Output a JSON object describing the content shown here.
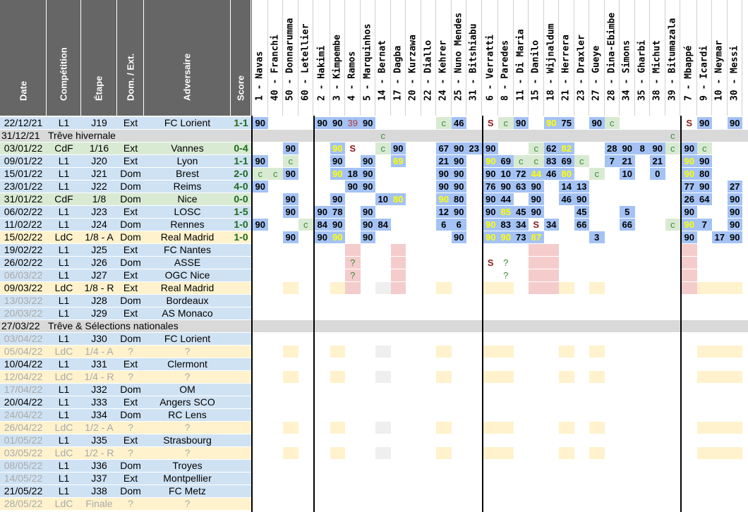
{
  "headers": [
    "Date",
    "Compétition",
    "Étape",
    "Dom. / Ext.",
    "Adversaire",
    "Score"
  ],
  "players": [
    "1 - Navas",
    "40 - Franchi",
    "50 - Donnarumma",
    "60 - Letellier",
    "2 - Hakimi",
    "3 - Kimpembe",
    "4 - Ramos",
    "5 - Marquinhos",
    "14 - Bernat",
    "17 - Dagba",
    "20 - Kurzawa",
    "22 - Diallo",
    "24 - Kehrer",
    "25 - Nuno Mendes",
    "31 - Bitshiabu",
    "6 - Verratti",
    "8 - Paredes",
    "11 - Di Maria",
    "15 - Danilo",
    "18 - Wijnaldum",
    "21 - Herrera",
    "23 - Draxler",
    "27 - Gueye",
    "28 - Dina-Ebimbe",
    "34 - Simons",
    "35 - Gharbi",
    "38 - Michut",
    "39 - Bitumazala",
    "7 - Mbappé",
    "9 - Icardi",
    "10 - Neymar",
    "30 - Messi"
  ],
  "colors": {
    "header": "#666666",
    "blue": "#a4c2f4",
    "lblue": "#cfe2f3",
    "green": "#d9ead3",
    "yellow": "#fff2cc",
    "red": "#f4cccc",
    "grey": "#efefef",
    "neutral": "#d9d9d9"
  },
  "rows": [
    {
      "date": "22/12/21",
      "comp": "L1",
      "stage": "J19",
      "venue": "Ext",
      "opp": "FC Lorient",
      "score": "1-1",
      "info": "lblue",
      "status": "played",
      "players": {
        "0": "90",
        "4": "90",
        "5": "90",
        "6": "39",
        "7": "90",
        "12": "c",
        "13": "46",
        "15": "S",
        "16": "c",
        "17": "90",
        "19": "90",
        "20": "75",
        "22": "90",
        "23": "c",
        "28": "S",
        "29": "90",
        "31": "90"
      }
    },
    {
      "date": "31/12/21",
      "span": "Trêve hivernale",
      "info": "neutral",
      "status": "break",
      "players": {
        "8": "c",
        "27": "c"
      }
    },
    {
      "date": "03/01/22",
      "comp": "CdF",
      "stage": "1/16",
      "venue": "Ext",
      "opp": "Vannes",
      "score": "0-4",
      "info": "green",
      "status": "played",
      "players": {
        "2": "90",
        "5": "90",
        "6": "S",
        "8": "c",
        "9": "90",
        "12": "67",
        "13": "90",
        "14": "23",
        "15": "90",
        "18": "c",
        "19": "62",
        "20": "82",
        "23": "28",
        "24": "90",
        "25": "8",
        "26": "90",
        "27": "c",
        "28": "90",
        "29": "c"
      }
    },
    {
      "date": "09/01/22",
      "comp": "L1",
      "stage": "J20",
      "venue": "Ext",
      "opp": "Lyon",
      "score": "1-1",
      "info": "lblue",
      "status": "played",
      "players": {
        "0": "90",
        "2": "c",
        "5": "90",
        "7": "90",
        "9": "69",
        "12": "21",
        "13": "90",
        "15": "90",
        "16": "69",
        "17": "c",
        "18": "c",
        "19": "83",
        "20": "69",
        "21": "c",
        "23": "7",
        "24": "21",
        "26": "21",
        "28": "90",
        "29": "90"
      }
    },
    {
      "date": "15/01/22",
      "comp": "L1",
      "stage": "J21",
      "venue": "Dom",
      "opp": "Brest",
      "score": "2-0",
      "info": "lblue",
      "status": "played",
      "players": {
        "0": "c",
        "1": "c",
        "2": "90",
        "5": "90",
        "6": "18",
        "7": "90",
        "12": "90",
        "13": "90",
        "15": "90",
        "16": "10",
        "17": "72",
        "18": "44",
        "19": "46",
        "20": "80",
        "22": "c",
        "24": "10",
        "26": "0",
        "28": "90",
        "29": "80"
      }
    },
    {
      "date": "23/01/22",
      "comp": "L1",
      "stage": "J22",
      "venue": "Dom",
      "opp": "Reims",
      "score": "4-0",
      "info": "lblue",
      "status": "played",
      "players": {
        "0": "90",
        "6": "90",
        "7": "90",
        "12": "90",
        "13": "90",
        "15": "76",
        "16": "90",
        "17": "63",
        "18": "90",
        "20": "14",
        "21": "13",
        "28": "77",
        "29": "90",
        "31": "27"
      }
    },
    {
      "date": "31/01/22",
      "comp": "CdF",
      "stage": "1/8",
      "venue": "Dom",
      "opp": "Nice",
      "score": "0-0",
      "info": "green",
      "status": "played",
      "players": {
        "2": "90",
        "5": "90",
        "8": "10",
        "9": "80",
        "12": "90",
        "13": "80",
        "15": "90",
        "16": "44",
        "18": "90",
        "20": "46",
        "21": "90",
        "28": "26",
        "29": "64",
        "31": "90"
      }
    },
    {
      "date": "06/02/22",
      "comp": "L1",
      "stage": "J23",
      "venue": "Ext",
      "opp": "LOSC",
      "score": "1-5",
      "info": "lblue",
      "status": "played",
      "players": {
        "2": "90",
        "4": "90",
        "5": "78",
        "7": "90",
        "12": "12",
        "13": "90",
        "15": "90",
        "16": "85",
        "17": "45",
        "18": "90",
        "21": "45",
        "24": "5",
        "28": "90",
        "31": "90"
      }
    },
    {
      "date": "11/02/22",
      "comp": "L1",
      "stage": "J24",
      "venue": "Dom",
      "opp": "Rennes",
      "score": "1-0",
      "info": "lblue",
      "status": "played",
      "players": {
        "0": "90",
        "3": "c",
        "4": "84",
        "5": "90",
        "7": "90",
        "8": "84",
        "12": "6",
        "13": "6",
        "15": "90",
        "16": "83",
        "17": "34",
        "18": "S",
        "19": "34",
        "21": "66",
        "24": "66",
        "27": "c",
        "28": "90",
        "29": "7",
        "31": "90"
      }
    },
    {
      "date": "15/02/22",
      "comp": "LdC",
      "stage": "1/8 - A",
      "venue": "Dom",
      "opp": "Real Madrid",
      "score": "1-0",
      "info": "yellow",
      "status": "played",
      "players": {
        "2": "90",
        "4": "90",
        "5": "90",
        "7": "90",
        "13": "90",
        "15": "90",
        "16": "90",
        "17": "73",
        "18": "87",
        "22": "3",
        "28": "90",
        "30": "17",
        "31": "90"
      }
    },
    {
      "date": "19/02/22",
      "comp": "L1",
      "stage": "J25",
      "venue": "Ext",
      "opp": "FC Nantes",
      "score": "",
      "info": "lblue",
      "status": "future",
      "players": {}
    },
    {
      "date": "26/02/22",
      "comp": "L1",
      "stage": "J26",
      "venue": "Dom",
      "opp": "ASSE",
      "score": "",
      "info": "lblue",
      "status": "future",
      "players": {
        "6": "?",
        "15": "S",
        "16": "?"
      }
    },
    {
      "date": "06/03/22",
      "comp": "L1",
      "stage": "J27",
      "venue": "Ext",
      "opp": "OGC Nice",
      "score": "",
      "info": "lblue",
      "status": "future",
      "players": {
        "6": "?",
        "16": "?"
      }
    },
    {
      "date": "09/03/22",
      "comp": "LdC",
      "stage": "1/8 - R",
      "venue": "Ext",
      "opp": "Real Madrid",
      "score": "",
      "info": "yellow",
      "status": "future",
      "players": {}
    },
    {
      "date": "13/03/22",
      "comp": "L1",
      "stage": "J28",
      "venue": "Dom",
      "opp": "Bordeaux",
      "score": "",
      "info": "lblue",
      "status": "future",
      "players": {}
    },
    {
      "date": "20/03/22",
      "comp": "L1",
      "stage": "J29",
      "venue": "Ext",
      "opp": "AS Monaco",
      "score": "",
      "info": "lblue",
      "status": "future",
      "players": {}
    },
    {
      "date": "27/03/22",
      "span": "Trêve & Sélections nationales",
      "info": "neutral",
      "status": "break",
      "players": {}
    },
    {
      "date": "03/04/22",
      "comp": "L1",
      "stage": "J30",
      "venue": "Dom",
      "opp": "FC Lorient",
      "score": "",
      "info": "lblue",
      "status": "future",
      "players": {}
    },
    {
      "date": "05/04/22",
      "comp": "LdC",
      "stage": "1/4 - A",
      "venue": "?",
      "opp": "?",
      "score": "",
      "info": "yellow",
      "status": "future",
      "players": {}
    },
    {
      "date": "10/04/22",
      "comp": "L1",
      "stage": "J31",
      "venue": "Ext",
      "opp": "Clermont",
      "score": "",
      "info": "lblue",
      "status": "future",
      "players": {}
    },
    {
      "date": "12/04/22",
      "comp": "LdC",
      "stage": "1/4 - R",
      "venue": "?",
      "opp": "?",
      "score": "",
      "info": "yellow",
      "status": "future",
      "players": {}
    },
    {
      "date": "17/04/22",
      "comp": "L1",
      "stage": "J32",
      "venue": "Dom",
      "opp": "OM",
      "score": "",
      "info": "lblue",
      "status": "future",
      "players": {}
    },
    {
      "date": "20/04/22",
      "comp": "L1",
      "stage": "J33",
      "venue": "Ext",
      "opp": "Angers SCO",
      "score": "",
      "info": "lblue",
      "status": "future",
      "players": {}
    },
    {
      "date": "24/04/22",
      "comp": "L1",
      "stage": "J34",
      "venue": "Dom",
      "opp": "RC Lens",
      "score": "",
      "info": "lblue",
      "status": "future",
      "players": {}
    },
    {
      "date": "26/04/22",
      "comp": "LdC",
      "stage": "1/2 - A",
      "venue": "?",
      "opp": "?",
      "score": "",
      "info": "yellow",
      "status": "future",
      "players": {}
    },
    {
      "date": "01/05/22",
      "comp": "L1",
      "stage": "J35",
      "venue": "Ext",
      "opp": "Strasbourg",
      "score": "",
      "info": "lblue",
      "status": "future",
      "players": {}
    },
    {
      "date": "03/05/22",
      "comp": "LdC",
      "stage": "1/2 - R",
      "venue": "?",
      "opp": "?",
      "score": "",
      "info": "yellow",
      "status": "future",
      "players": {}
    },
    {
      "date": "08/05/22",
      "comp": "L1",
      "stage": "J36",
      "venue": "Dom",
      "opp": "Troyes",
      "score": "",
      "info": "lblue",
      "status": "future",
      "players": {}
    },
    {
      "date": "14/05/22",
      "comp": "L1",
      "stage": "J37",
      "venue": "Ext",
      "opp": "Montpellier",
      "score": "",
      "info": "lblue",
      "status": "future",
      "players": {}
    },
    {
      "date": "21/05/22",
      "comp": "L1",
      "stage": "J38",
      "venue": "Dom",
      "opp": "FC Metz",
      "score": "",
      "info": "lblue",
      "status": "future",
      "players": {}
    },
    {
      "date": "28/05/22",
      "comp": "LdC",
      "stage": "Finale",
      "venue": "?",
      "opp": "?",
      "score": "",
      "info": "yellow",
      "status": "future",
      "players": {}
    }
  ],
  "grey_dates": [
    12,
    14,
    15,
    17,
    18,
    20,
    21,
    23,
    24,
    25,
    26,
    27,
    28,
    30
  ],
  "grey_all": [
    18,
    20,
    24,
    26,
    30
  ],
  "future_cols": {
    "red": [
      6,
      9,
      18,
      19,
      28
    ],
    "yellow": [
      2,
      5,
      12,
      15,
      16,
      20,
      22,
      29,
      30,
      31
    ],
    "grey": [
      8
    ]
  }
}
